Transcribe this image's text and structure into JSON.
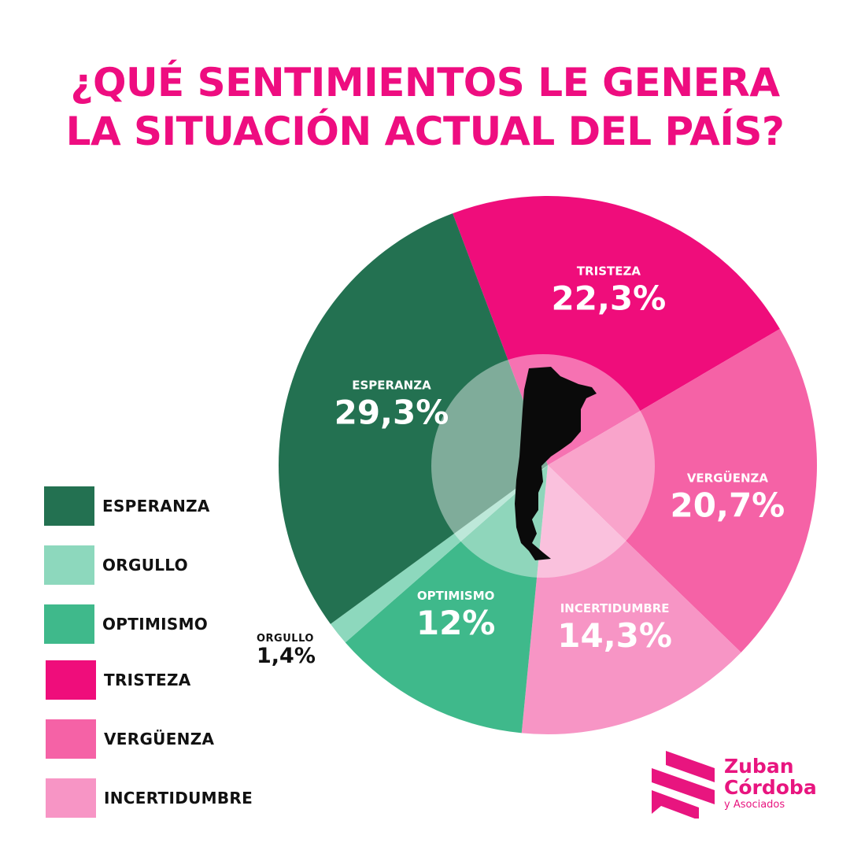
{
  "title": {
    "line1": "¿QUÉ SENTIMIENTOS LE GENERA",
    "line2": "LA SITUACIÓN ACTUAL DEL PAÍS?"
  },
  "chart_data": {
    "type": "pie",
    "title": "¿QUÉ SENTIMIENTOS LE GENERA LA SITUACIÓN ACTUAL DEL PAÍS?",
    "unit": "%",
    "slices": [
      {
        "label": "TRISTEZA",
        "value": 22.3,
        "display": "22,3%",
        "color": "#ef0d7b"
      },
      {
        "label": "VERGÜENZA",
        "value": 20.7,
        "display": "20,7%",
        "color": "#f562a6"
      },
      {
        "label": "INCERTIDUMBRE",
        "value": 14.3,
        "display": "14,3%",
        "color": "#f795c5"
      },
      {
        "label": "OPTIMISMO",
        "value": 12,
        "display": "12%",
        "color": "#3fb98b"
      },
      {
        "label": "ORGULLO",
        "value": 1.4,
        "display": "1,4%",
        "color": "#8dd8bd"
      },
      {
        "label": "ESPERANZA",
        "value": 29.3,
        "display": "29,3%",
        "color": "#237151"
      }
    ],
    "legend_position": "left",
    "center_decoration": "argentina-map"
  },
  "legend": {
    "items": [
      {
        "label": "ESPERANZA",
        "color": "#237151"
      },
      {
        "label": "ORGULLO",
        "color": "#8dd8bd"
      },
      {
        "label": "OPTIMISMO",
        "color": "#3fb98b"
      },
      {
        "label": "TRISTEZA",
        "color": "#ef0d7b"
      },
      {
        "label": "VERGÜENZA",
        "color": "#f562a6"
      },
      {
        "label": "INCERTIDUMBRE",
        "color": "#f795c5"
      }
    ]
  },
  "outside_label": {
    "category": "ORGULLO",
    "value": "1,4%"
  },
  "logo": {
    "line1": "Zuban",
    "line2": "Córdoba",
    "line3": "y Asociados",
    "color": "#e8157f"
  }
}
